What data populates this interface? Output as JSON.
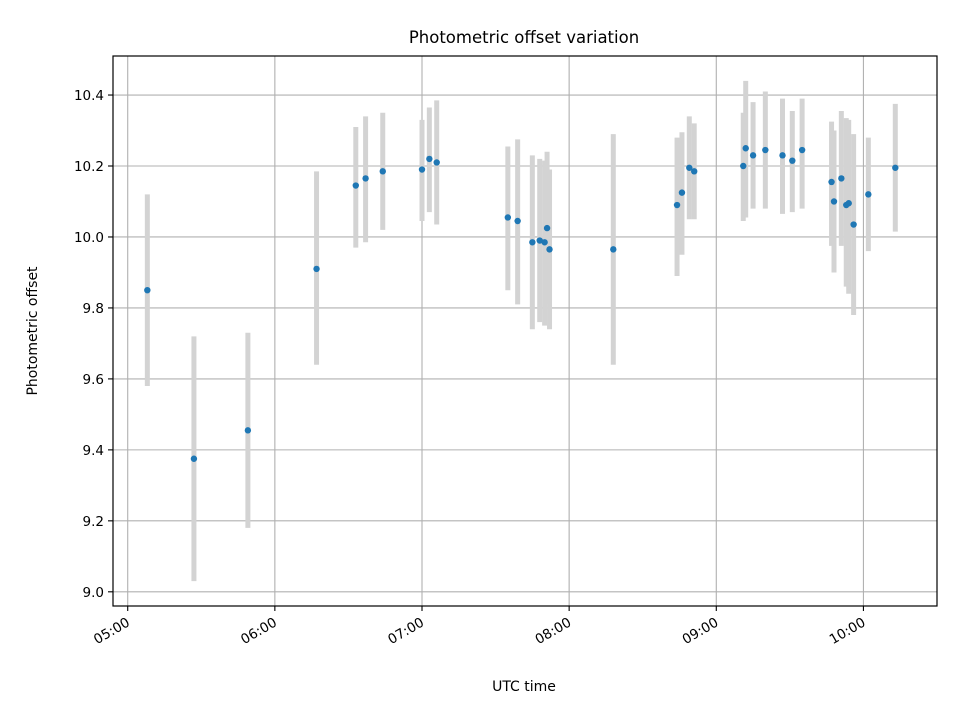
{
  "chart_data": {
    "type": "scatter",
    "title": "Photometric offset variation",
    "xlabel": "UTC time",
    "ylabel": "Photometric offset",
    "xlim": [
      "04:54",
      "10:30"
    ],
    "ylim": [
      8.96,
      10.51
    ],
    "grid": true,
    "x_ticks": [
      "05:00",
      "06:00",
      "07:00",
      "08:00",
      "09:00",
      "10:00"
    ],
    "y_ticks": [
      9.0,
      9.2,
      9.4,
      9.6,
      9.8,
      10.0,
      10.2,
      10.4
    ],
    "y_tick_labels": [
      "9.0",
      "9.2",
      "9.4",
      "9.6",
      "9.8",
      "10.0",
      "10.2",
      "10.4"
    ],
    "colors": {
      "point": "#1f77b4",
      "errorbar": "#d3d3d3",
      "grid": "#b0b0b0"
    },
    "points": [
      {
        "x": "05:08",
        "y": 9.85,
        "lo": 9.58,
        "hi": 10.12
      },
      {
        "x": "05:27",
        "y": 9.375,
        "lo": 9.03,
        "hi": 9.72
      },
      {
        "x": "05:49",
        "y": 9.455,
        "lo": 9.18,
        "hi": 9.73
      },
      {
        "x": "06:17",
        "y": 9.91,
        "lo": 9.64,
        "hi": 10.185
      },
      {
        "x": "06:33",
        "y": 10.145,
        "lo": 9.97,
        "hi": 10.31
      },
      {
        "x": "06:37",
        "y": 10.165,
        "lo": 9.985,
        "hi": 10.34
      },
      {
        "x": "06:44",
        "y": 10.185,
        "lo": 10.02,
        "hi": 10.35
      },
      {
        "x": "07:00",
        "y": 10.19,
        "lo": 10.045,
        "hi": 10.33
      },
      {
        "x": "07:03",
        "y": 10.22,
        "lo": 10.07,
        "hi": 10.365
      },
      {
        "x": "07:06",
        "y": 10.21,
        "lo": 10.035,
        "hi": 10.385
      },
      {
        "x": "07:35",
        "y": 10.055,
        "lo": 9.85,
        "hi": 10.255
      },
      {
        "x": "07:39",
        "y": 10.045,
        "lo": 9.81,
        "hi": 10.275
      },
      {
        "x": "07:45",
        "y": 9.985,
        "lo": 9.74,
        "hi": 10.23
      },
      {
        "x": "07:48",
        "y": 9.99,
        "lo": 9.76,
        "hi": 10.22
      },
      {
        "x": "07:50",
        "y": 9.985,
        "lo": 9.75,
        "hi": 10.215
      },
      {
        "x": "07:51",
        "y": 10.025,
        "lo": 9.81,
        "hi": 10.24
      },
      {
        "x": "07:52",
        "y": 9.965,
        "lo": 9.74,
        "hi": 10.19
      },
      {
        "x": "08:18",
        "y": 9.965,
        "lo": 9.64,
        "hi": 10.29
      },
      {
        "x": "08:44",
        "y": 10.09,
        "lo": 9.89,
        "hi": 10.28
      },
      {
        "x": "08:46",
        "y": 10.125,
        "lo": 9.95,
        "hi": 10.295
      },
      {
        "x": "08:49",
        "y": 10.195,
        "lo": 10.05,
        "hi": 10.34
      },
      {
        "x": "08:51",
        "y": 10.185,
        "lo": 10.05,
        "hi": 10.32
      },
      {
        "x": "09:11",
        "y": 10.2,
        "lo": 10.045,
        "hi": 10.35
      },
      {
        "x": "09:12",
        "y": 10.25,
        "lo": 10.055,
        "hi": 10.44
      },
      {
        "x": "09:15",
        "y": 10.23,
        "lo": 10.08,
        "hi": 10.38
      },
      {
        "x": "09:20",
        "y": 10.245,
        "lo": 10.08,
        "hi": 10.41
      },
      {
        "x": "09:27",
        "y": 10.23,
        "lo": 10.065,
        "hi": 10.39
      },
      {
        "x": "09:31",
        "y": 10.215,
        "lo": 10.07,
        "hi": 10.355
      },
      {
        "x": "09:35",
        "y": 10.245,
        "lo": 10.08,
        "hi": 10.39
      },
      {
        "x": "09:47",
        "y": 10.155,
        "lo": 9.975,
        "hi": 10.325
      },
      {
        "x": "09:48",
        "y": 10.1,
        "lo": 9.9,
        "hi": 10.3
      },
      {
        "x": "09:51",
        "y": 10.165,
        "lo": 9.975,
        "hi": 10.355
      },
      {
        "x": "09:53",
        "y": 10.09,
        "lo": 9.86,
        "hi": 10.335
      },
      {
        "x": "09:54",
        "y": 10.095,
        "lo": 9.84,
        "hi": 10.33
      },
      {
        "x": "09:56",
        "y": 10.035,
        "lo": 9.78,
        "hi": 10.29
      },
      {
        "x": "10:02",
        "y": 10.12,
        "lo": 9.96,
        "hi": 10.28
      },
      {
        "x": "10:13",
        "y": 10.195,
        "lo": 10.015,
        "hi": 10.375
      }
    ]
  }
}
